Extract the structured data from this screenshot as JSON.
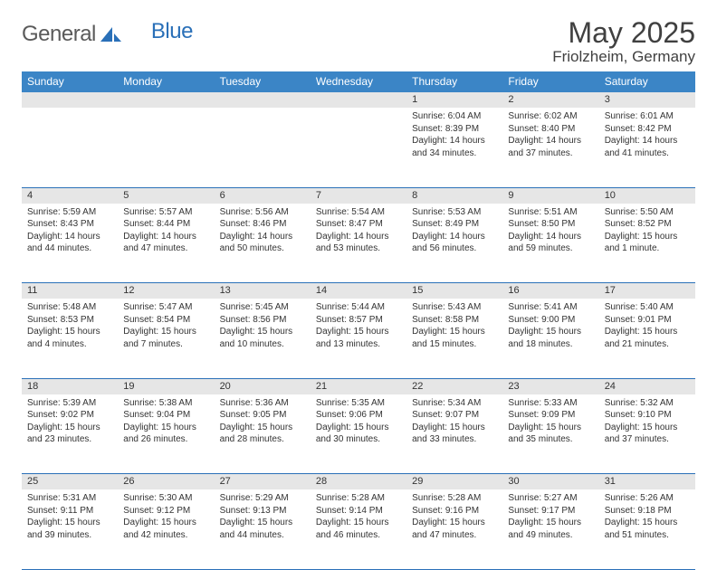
{
  "brand": {
    "word1": "General",
    "word2": "Blue"
  },
  "title": "May 2025",
  "location": "Friolzheim, Germany",
  "colors": {
    "header_bg": "#3b85c6",
    "rule": "#2a70b8",
    "daynum_bg": "#e6e6e6",
    "text": "#333333",
    "brand_blue": "#2a70b8",
    "brand_gray": "#5a5a5a"
  },
  "weekdays": [
    "Sunday",
    "Monday",
    "Tuesday",
    "Wednesday",
    "Thursday",
    "Friday",
    "Saturday"
  ],
  "weeks": [
    {
      "nums": [
        "",
        "",
        "",
        "",
        "1",
        "2",
        "3"
      ],
      "cells": [
        null,
        null,
        null,
        null,
        {
          "sunrise": "6:04 AM",
          "sunset": "8:39 PM",
          "daylight": "14 hours and 34 minutes."
        },
        {
          "sunrise": "6:02 AM",
          "sunset": "8:40 PM",
          "daylight": "14 hours and 37 minutes."
        },
        {
          "sunrise": "6:01 AM",
          "sunset": "8:42 PM",
          "daylight": "14 hours and 41 minutes."
        }
      ]
    },
    {
      "nums": [
        "4",
        "5",
        "6",
        "7",
        "8",
        "9",
        "10"
      ],
      "cells": [
        {
          "sunrise": "5:59 AM",
          "sunset": "8:43 PM",
          "daylight": "14 hours and 44 minutes."
        },
        {
          "sunrise": "5:57 AM",
          "sunset": "8:44 PM",
          "daylight": "14 hours and 47 minutes."
        },
        {
          "sunrise": "5:56 AM",
          "sunset": "8:46 PM",
          "daylight": "14 hours and 50 minutes."
        },
        {
          "sunrise": "5:54 AM",
          "sunset": "8:47 PM",
          "daylight": "14 hours and 53 minutes."
        },
        {
          "sunrise": "5:53 AM",
          "sunset": "8:49 PM",
          "daylight": "14 hours and 56 minutes."
        },
        {
          "sunrise": "5:51 AM",
          "sunset": "8:50 PM",
          "daylight": "14 hours and 59 minutes."
        },
        {
          "sunrise": "5:50 AM",
          "sunset": "8:52 PM",
          "daylight": "15 hours and 1 minute."
        }
      ]
    },
    {
      "nums": [
        "11",
        "12",
        "13",
        "14",
        "15",
        "16",
        "17"
      ],
      "cells": [
        {
          "sunrise": "5:48 AM",
          "sunset": "8:53 PM",
          "daylight": "15 hours and 4 minutes."
        },
        {
          "sunrise": "5:47 AM",
          "sunset": "8:54 PM",
          "daylight": "15 hours and 7 minutes."
        },
        {
          "sunrise": "5:45 AM",
          "sunset": "8:56 PM",
          "daylight": "15 hours and 10 minutes."
        },
        {
          "sunrise": "5:44 AM",
          "sunset": "8:57 PM",
          "daylight": "15 hours and 13 minutes."
        },
        {
          "sunrise": "5:43 AM",
          "sunset": "8:58 PM",
          "daylight": "15 hours and 15 minutes."
        },
        {
          "sunrise": "5:41 AM",
          "sunset": "9:00 PM",
          "daylight": "15 hours and 18 minutes."
        },
        {
          "sunrise": "5:40 AM",
          "sunset": "9:01 PM",
          "daylight": "15 hours and 21 minutes."
        }
      ]
    },
    {
      "nums": [
        "18",
        "19",
        "20",
        "21",
        "22",
        "23",
        "24"
      ],
      "cells": [
        {
          "sunrise": "5:39 AM",
          "sunset": "9:02 PM",
          "daylight": "15 hours and 23 minutes."
        },
        {
          "sunrise": "5:38 AM",
          "sunset": "9:04 PM",
          "daylight": "15 hours and 26 minutes."
        },
        {
          "sunrise": "5:36 AM",
          "sunset": "9:05 PM",
          "daylight": "15 hours and 28 minutes."
        },
        {
          "sunrise": "5:35 AM",
          "sunset": "9:06 PM",
          "daylight": "15 hours and 30 minutes."
        },
        {
          "sunrise": "5:34 AM",
          "sunset": "9:07 PM",
          "daylight": "15 hours and 33 minutes."
        },
        {
          "sunrise": "5:33 AM",
          "sunset": "9:09 PM",
          "daylight": "15 hours and 35 minutes."
        },
        {
          "sunrise": "5:32 AM",
          "sunset": "9:10 PM",
          "daylight": "15 hours and 37 minutes."
        }
      ]
    },
    {
      "nums": [
        "25",
        "26",
        "27",
        "28",
        "29",
        "30",
        "31"
      ],
      "cells": [
        {
          "sunrise": "5:31 AM",
          "sunset": "9:11 PM",
          "daylight": "15 hours and 39 minutes."
        },
        {
          "sunrise": "5:30 AM",
          "sunset": "9:12 PM",
          "daylight": "15 hours and 42 minutes."
        },
        {
          "sunrise": "5:29 AM",
          "sunset": "9:13 PM",
          "daylight": "15 hours and 44 minutes."
        },
        {
          "sunrise": "5:28 AM",
          "sunset": "9:14 PM",
          "daylight": "15 hours and 46 minutes."
        },
        {
          "sunrise": "5:28 AM",
          "sunset": "9:16 PM",
          "daylight": "15 hours and 47 minutes."
        },
        {
          "sunrise": "5:27 AM",
          "sunset": "9:17 PM",
          "daylight": "15 hours and 49 minutes."
        },
        {
          "sunrise": "5:26 AM",
          "sunset": "9:18 PM",
          "daylight": "15 hours and 51 minutes."
        }
      ]
    }
  ],
  "labels": {
    "sunrise": "Sunrise:",
    "sunset": "Sunset:",
    "daylight": "Daylight:"
  }
}
